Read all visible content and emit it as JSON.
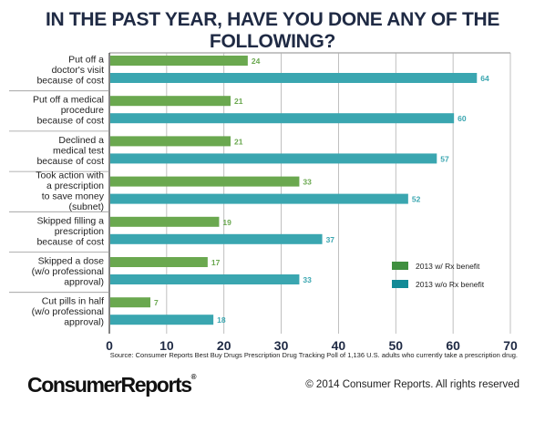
{
  "title": "IN THE PAST YEAR, HAVE YOU DONE ANY OF THE FOLLOWING?",
  "source": "Source: Consumer Reports Best Buy Drugs Prescription Drug Tracking Poll of 1,136 U.S. adults who currently take a prescription drug.",
  "logo_text": "ConsumerReports",
  "logo_mark": "®",
  "copyright": "© 2014 Consumer Reports. All rights reserved",
  "colors": {
    "with_rx": "#6aa84f",
    "without_rx": "#3aa6b0",
    "legend_with_rx": "#3f8f3f",
    "legend_without_rx": "#138a96",
    "title": "#1f2a44",
    "grid": "#b0b0b0"
  },
  "chart_data": {
    "type": "bar",
    "orientation": "horizontal",
    "title": "IN THE PAST YEAR, HAVE YOU DONE ANY OF THE FOLLOWING?",
    "categories": [
      [
        "Put off a",
        "doctor's visit",
        "because of cost"
      ],
      [
        "Put off a medical",
        "procedure",
        "because of cost"
      ],
      [
        "Declined a",
        "medical test",
        "because of cost"
      ],
      [
        "Took action with",
        "a prescription",
        "to save money",
        "(subnet)"
      ],
      [
        "Skipped filling a",
        "prescription",
        "because of cost"
      ],
      [
        "Skipped a dose",
        "(w/o professional",
        "approval)"
      ],
      [
        "Cut pills in half",
        "(w/o professional",
        "approval)"
      ]
    ],
    "series": [
      {
        "name": "2013 w/ Rx benefit",
        "values": [
          24,
          21,
          21,
          33,
          19,
          17,
          7
        ]
      },
      {
        "name": "2013 w/o Rx benefit",
        "values": [
          64,
          60,
          57,
          52,
          37,
          33,
          18
        ]
      }
    ],
    "xlim": [
      0,
      70
    ],
    "xticks": [
      0,
      10,
      20,
      30,
      40,
      50,
      60,
      70
    ],
    "grid": true,
    "legend_position": "lower-right"
  }
}
